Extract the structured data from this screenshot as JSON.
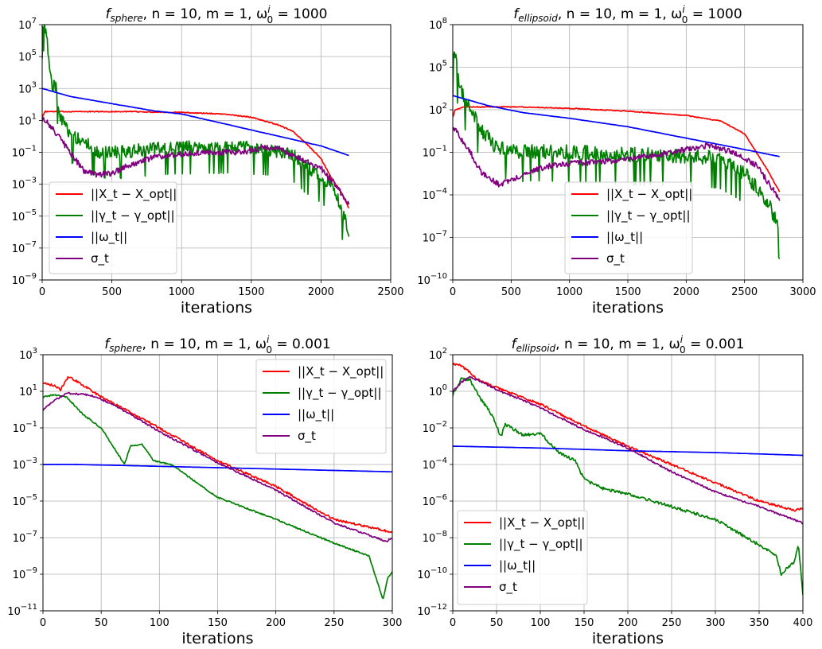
{
  "chart_data": [
    {
      "type": "line",
      "title": "f_sphere, n = 10, m = 1, ω₀ⁱ = 1000",
      "title_parts": {
        "f": "f",
        "sub": "sphere",
        "mid": ", n = 10, m = 1, ω",
        "sup": "i",
        "sub0": "0",
        "end": " = 1000"
      },
      "xlabel": "iterations",
      "xlim": [
        0,
        2500
      ],
      "ylim_exp": [
        -9,
        7
      ],
      "yscale": "log",
      "x_ticks": [
        "0",
        "500",
        "1000",
        "1500",
        "2000",
        "2500"
      ],
      "y_ticks": [
        "10^-9",
        "10^-7",
        "10^-5",
        "10^-3",
        "10^-1",
        "10^1",
        "10^3",
        "10^5",
        "10^7"
      ],
      "grid": true,
      "legend_position": "lower-left",
      "series": [
        {
          "name": "||X_t − X_opt||",
          "color": "#ff0000",
          "noise": 0.03,
          "points": [
            [
              0,
              1.2
            ],
            [
              20,
              1.55
            ],
            [
              200,
              1.55
            ],
            [
              600,
              1.55
            ],
            [
              1000,
              1.5
            ],
            [
              1300,
              1.4
            ],
            [
              1500,
              1.2
            ],
            [
              1700,
              0.7
            ],
            [
              1800,
              0.3
            ],
            [
              1900,
              -0.5
            ],
            [
              2000,
              -1.4
            ],
            [
              2080,
              -2.7
            ],
            [
              2140,
              -3.4
            ],
            [
              2200,
              -4.5
            ]
          ]
        },
        {
          "name": "||γ_t − γ_opt||",
          "color": "#008000",
          "noise": 0.55,
          "points": [
            [
              0,
              6.5
            ],
            [
              10,
              7
            ],
            [
              30,
              6.4
            ],
            [
              50,
              4.5
            ],
            [
              70,
              3.2
            ],
            [
              100,
              3
            ],
            [
              130,
              1.2
            ],
            [
              200,
              0
            ],
            [
              300,
              -0.3
            ],
            [
              400,
              -1
            ],
            [
              600,
              -1
            ],
            [
              800,
              -0.8
            ],
            [
              1000,
              -0.7
            ],
            [
              1200,
              -0.7
            ],
            [
              1400,
              -0.7
            ],
            [
              1600,
              -0.8
            ],
            [
              1800,
              -1.2
            ],
            [
              1900,
              -2
            ],
            [
              2000,
              -2.5
            ],
            [
              2100,
              -3.5
            ],
            [
              2200,
              -6
            ]
          ]
        },
        {
          "name": "||ω_t||",
          "color": "#0000ff",
          "noise": 0.01,
          "points": [
            [
              0,
              3
            ],
            [
              200,
              2.5
            ],
            [
              400,
              2.2
            ],
            [
              600,
              1.9
            ],
            [
              800,
              1.6
            ],
            [
              1000,
              1.4
            ],
            [
              1200,
              1
            ],
            [
              1400,
              0.6
            ],
            [
              1600,
              0.2
            ],
            [
              1800,
              -0.2
            ],
            [
              2000,
              -0.6
            ],
            [
              2200,
              -1.2
            ]
          ]
        },
        {
          "name": "σ_t",
          "color": "#800080",
          "noise": 0.18,
          "points": [
            [
              0,
              1.1
            ],
            [
              30,
              0.9
            ],
            [
              100,
              0.2
            ],
            [
              200,
              -1
            ],
            [
              300,
              -2.2
            ],
            [
              400,
              -2.4
            ],
            [
              500,
              -2.3
            ],
            [
              600,
              -1.9
            ],
            [
              700,
              -1.6
            ],
            [
              800,
              -1.3
            ],
            [
              1000,
              -1.1
            ],
            [
              1200,
              -1
            ],
            [
              1400,
              -1
            ],
            [
              1500,
              -0.9
            ],
            [
              1600,
              -0.7
            ],
            [
              1700,
              -0.8
            ],
            [
              1800,
              -1.2
            ],
            [
              1900,
              -1.6
            ],
            [
              2000,
              -2
            ],
            [
              2100,
              -3
            ],
            [
              2200,
              -4.2
            ]
          ]
        }
      ]
    },
    {
      "type": "line",
      "title": "f_ellipsoid, n = 10, m = 1, ω₀ⁱ = 1000",
      "title_parts": {
        "f": "f",
        "sub": "ellipsoid",
        "mid": ", n = 10, m = 1, ω",
        "sup": "i",
        "sub0": "0",
        "end": " = 1000"
      },
      "xlabel": "iterations",
      "xlim": [
        0,
        3000
      ],
      "ylim_exp": [
        -10,
        8
      ],
      "yscale": "log",
      "x_ticks": [
        "0",
        "500",
        "1000",
        "1500",
        "2000",
        "2500",
        "3000"
      ],
      "y_ticks": [
        "10^-10",
        "10^-7",
        "10^-4",
        "10^-1",
        "10^2",
        "10^5",
        "10^8"
      ],
      "grid": true,
      "legend_position": "lower-right",
      "series": [
        {
          "name": "||X_t − X_opt||",
          "color": "#ff0000",
          "noise": 0.03,
          "points": [
            [
              0,
              1.5
            ],
            [
              20,
              2
            ],
            [
              100,
              2.2
            ],
            [
              600,
              2.2
            ],
            [
              1000,
              2.1
            ],
            [
              1500,
              1.9
            ],
            [
              2000,
              1.6
            ],
            [
              2300,
              1.2
            ],
            [
              2500,
              0.3
            ],
            [
              2600,
              -1
            ],
            [
              2700,
              -2.3
            ],
            [
              2800,
              -3.8
            ]
          ]
        },
        {
          "name": "||γ_t − γ_opt||",
          "color": "#008000",
          "noise": 0.7,
          "points": [
            [
              0,
              5
            ],
            [
              10,
              6.5
            ],
            [
              40,
              4.5
            ],
            [
              80,
              3
            ],
            [
              150,
              2
            ],
            [
              250,
              0.5
            ],
            [
              350,
              -0.5
            ],
            [
              500,
              -1
            ],
            [
              1000,
              -1
            ],
            [
              1500,
              -1.2
            ],
            [
              2000,
              -1.3
            ],
            [
              2300,
              -1.5
            ],
            [
              2500,
              -2.5
            ],
            [
              2700,
              -4.5
            ],
            [
              2800,
              -6.5
            ]
          ]
        },
        {
          "name": "||ω_t||",
          "color": "#0000ff",
          "noise": 0.01,
          "points": [
            [
              0,
              3
            ],
            [
              300,
              2.3
            ],
            [
              600,
              1.8
            ],
            [
              1000,
              1.4
            ],
            [
              1500,
              0.8
            ],
            [
              2000,
              0
            ],
            [
              2500,
              -0.8
            ],
            [
              2800,
              -1.3
            ]
          ]
        },
        {
          "name": "σ_t",
          "color": "#800080",
          "noise": 0.2,
          "points": [
            [
              0,
              0.8
            ],
            [
              50,
              0.2
            ],
            [
              150,
              -1
            ],
            [
              250,
              -2.5
            ],
            [
              400,
              -3.3
            ],
            [
              600,
              -2.6
            ],
            [
              800,
              -2
            ],
            [
              1000,
              -1.8
            ],
            [
              1200,
              -1.7
            ],
            [
              1500,
              -1.5
            ],
            [
              1800,
              -1.1
            ],
            [
              2000,
              -0.8
            ],
            [
              2200,
              -0.5
            ],
            [
              2400,
              -1
            ],
            [
              2600,
              -1.9
            ],
            [
              2800,
              -4.3
            ]
          ]
        }
      ]
    },
    {
      "type": "line",
      "title": "f_sphere, n = 10, m = 1, ω₀ⁱ = 0.001",
      "title_parts": {
        "f": "f",
        "sub": "sphere",
        "mid": ", n = 10, m = 1, ω",
        "sup": "i",
        "sub0": "0",
        "end": " = 0.001"
      },
      "xlabel": "iterations",
      "xlim": [
        0,
        300
      ],
      "ylim_exp": [
        -11,
        3
      ],
      "yscale": "log",
      "x_ticks": [
        "0",
        "50",
        "100",
        "150",
        "200",
        "250",
        "300"
      ],
      "y_ticks": [
        "10^-11",
        "10^-9",
        "10^-7",
        "10^-5",
        "10^-3",
        "10^-1",
        "10^1",
        "10^3"
      ],
      "grid": true,
      "legend_position": "upper-right",
      "series": [
        {
          "name": "||X_t − X_opt||",
          "color": "#ff0000",
          "noise": 0.06,
          "points": [
            [
              0,
              1.5
            ],
            [
              10,
              1.3
            ],
            [
              15,
              1.1
            ],
            [
              22,
              1.8
            ],
            [
              30,
              1.5
            ],
            [
              50,
              0.7
            ],
            [
              100,
              -1
            ],
            [
              150,
              -2.8
            ],
            [
              200,
              -4.2
            ],
            [
              250,
              -6
            ],
            [
              300,
              -6.7
            ]
          ]
        },
        {
          "name": "||γ_t − γ_opt||",
          "color": "#008000",
          "noise": 0.04,
          "points": [
            [
              0,
              0.7
            ],
            [
              10,
              0.8
            ],
            [
              20,
              0.7
            ],
            [
              35,
              -0.3
            ],
            [
              50,
              -1
            ],
            [
              60,
              -2
            ],
            [
              70,
              -3
            ],
            [
              75,
              -2
            ],
            [
              85,
              -1.9
            ],
            [
              95,
              -2.8
            ],
            [
              110,
              -3
            ],
            [
              150,
              -4.8
            ],
            [
              200,
              -6
            ],
            [
              250,
              -7.3
            ],
            [
              280,
              -8
            ],
            [
              292,
              -10.4
            ],
            [
              296,
              -9.2
            ],
            [
              300,
              -8.9
            ]
          ]
        },
        {
          "name": "||ω_t||",
          "color": "#0000ff",
          "noise": 0.003,
          "points": [
            [
              0,
              -3
            ],
            [
              30,
              -3
            ],
            [
              100,
              -3.1
            ],
            [
              200,
              -3.25
            ],
            [
              300,
              -3.4
            ]
          ]
        },
        {
          "name": "σ_t",
          "color": "#800080",
          "noise": 0.05,
          "points": [
            [
              0,
              0
            ],
            [
              10,
              0.5
            ],
            [
              20,
              0.9
            ],
            [
              40,
              0.8
            ],
            [
              60,
              0.3
            ],
            [
              100,
              -1.2
            ],
            [
              150,
              -2.9
            ],
            [
              200,
              -4.4
            ],
            [
              250,
              -6.2
            ],
            [
              295,
              -7.2
            ],
            [
              300,
              -7
            ]
          ]
        }
      ]
    },
    {
      "type": "line",
      "title": "f_ellipsoid, n = 10, m = 1, ω₀ⁱ = 0.001",
      "title_parts": {
        "f": "f",
        "sub": "ellipsoid",
        "mid": ", n = 10, m = 1, ω",
        "sup": "i",
        "sub0": "0",
        "end": " = 0.001"
      },
      "xlabel": "iterations",
      "xlim": [
        0,
        400
      ],
      "ylim_exp": [
        -12,
        2
      ],
      "yscale": "log",
      "x_ticks": [
        "0",
        "50",
        "100",
        "150",
        "200",
        "250",
        "300",
        "350",
        "400"
      ],
      "y_ticks": [
        "10^-12",
        "10^-10",
        "10^-8",
        "10^-6",
        "10^-4",
        "10^-2",
        "10^0",
        "10^2"
      ],
      "grid": true,
      "legend_position": "lower-left",
      "series": [
        {
          "name": "||X_t − X_opt||",
          "color": "#ff0000",
          "noise": 0.06,
          "points": [
            [
              0,
              1.5
            ],
            [
              10,
              1.4
            ],
            [
              20,
              1
            ],
            [
              30,
              0.6
            ],
            [
              50,
              0.2
            ],
            [
              100,
              -0.7
            ],
            [
              150,
              -1.9
            ],
            [
              200,
              -3
            ],
            [
              250,
              -4
            ],
            [
              300,
              -5
            ],
            [
              350,
              -6
            ],
            [
              390,
              -6.5
            ],
            [
              400,
              -6.4
            ]
          ]
        },
        {
          "name": "||γ_t − γ_opt||",
          "color": "#008000",
          "noise": 0.08,
          "points": [
            [
              0,
              -0.2
            ],
            [
              10,
              0.7
            ],
            [
              20,
              0.6
            ],
            [
              30,
              -0.3
            ],
            [
              45,
              -1.3
            ],
            [
              55,
              -2.5
            ],
            [
              60,
              -1.8
            ],
            [
              80,
              -2.4
            ],
            [
              100,
              -2.3
            ],
            [
              120,
              -3.3
            ],
            [
              140,
              -3.8
            ],
            [
              150,
              -4.8
            ],
            [
              170,
              -5.3
            ],
            [
              200,
              -5.6
            ],
            [
              250,
              -6.3
            ],
            [
              300,
              -7
            ],
            [
              350,
              -8.4
            ],
            [
              370,
              -9
            ],
            [
              375,
              -10
            ],
            [
              390,
              -9.3
            ],
            [
              395,
              -8.4
            ],
            [
              400,
              -11.2
            ]
          ]
        },
        {
          "name": "||ω_t||",
          "color": "#0000ff",
          "noise": 0.003,
          "points": [
            [
              0,
              -3
            ],
            [
              100,
              -3.1
            ],
            [
              200,
              -3.25
            ],
            [
              300,
              -3.35
            ],
            [
              400,
              -3.5
            ]
          ]
        },
        {
          "name": "σ_t",
          "color": "#800080",
          "noise": 0.05,
          "points": [
            [
              0,
              0
            ],
            [
              10,
              0.5
            ],
            [
              20,
              0.8
            ],
            [
              50,
              0.1
            ],
            [
              100,
              -0.9
            ],
            [
              150,
              -2.1
            ],
            [
              200,
              -3.1
            ],
            [
              250,
              -4.4
            ],
            [
              300,
              -5.5
            ],
            [
              350,
              -6.3
            ],
            [
              400,
              -7.2
            ]
          ]
        }
      ]
    }
  ]
}
